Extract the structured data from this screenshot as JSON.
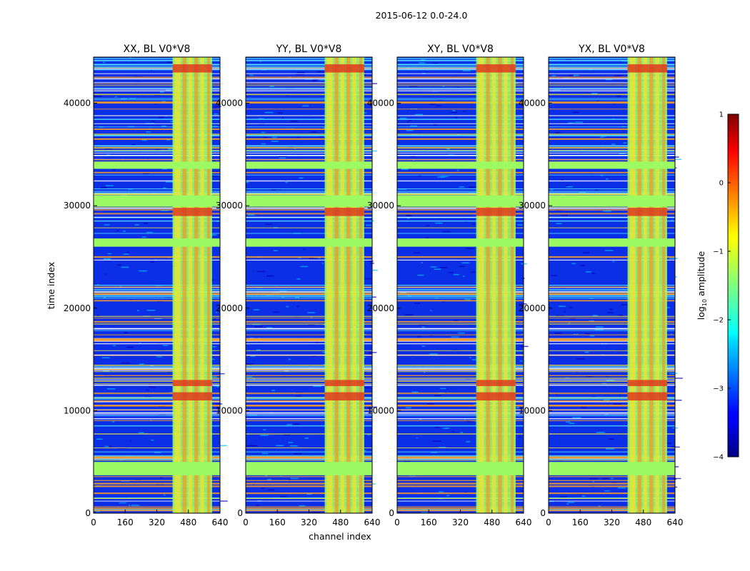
{
  "figure_title": "2015-06-12 0.0-24.0",
  "colors": {
    "low": "#00007f",
    "mid": "#7fff7f",
    "high": "#7f0000",
    "band_dark": "#0a2fe6",
    "band_green": "#9cfb62",
    "band_orange": "#f39a2a",
    "band_yellow": "#f1e233"
  },
  "chart_data": [
    {
      "type": "heatmap",
      "title": "XX, BL V0*V8",
      "xlabel": "",
      "ylabel": "time index",
      "xlim": [
        0,
        640
      ],
      "ylim": [
        0,
        44500
      ],
      "x_ticks": [
        0,
        160,
        320,
        480,
        640
      ],
      "y_ticks": [
        0,
        10000,
        20000,
        30000,
        40000
      ],
      "value_scale": "log10 amplitude",
      "dominant_features": [
        {
          "kind": "bright-channel-band",
          "channel_range": [
            400,
            600
          ]
        },
        {
          "kind": "saturated-time-rows",
          "time_ranges": [
            [
              3700,
              5000
            ],
            [
              29900,
              31000
            ],
            [
              33600,
              34300
            ]
          ]
        }
      ]
    },
    {
      "type": "heatmap",
      "title": "YY, BL V0*V8",
      "xlabel": "channel index",
      "ylabel": "",
      "xlim": [
        0,
        640
      ],
      "ylim": [
        0,
        44500
      ],
      "x_ticks": [
        0,
        160,
        320,
        480,
        640
      ],
      "y_ticks": [
        0,
        10000,
        20000,
        30000,
        40000
      ],
      "value_scale": "log10 amplitude",
      "dominant_features": [
        {
          "kind": "bright-channel-band",
          "channel_range": [
            400,
            600
          ]
        },
        {
          "kind": "saturated-time-rows",
          "time_ranges": [
            [
              3700,
              5000
            ],
            [
              29900,
              31000
            ],
            [
              33600,
              34300
            ]
          ]
        }
      ]
    },
    {
      "type": "heatmap",
      "title": "XY, BL V0*V8",
      "xlabel": "",
      "ylabel": "",
      "xlim": [
        0,
        640
      ],
      "ylim": [
        0,
        44500
      ],
      "x_ticks": [
        0,
        160,
        320,
        480,
        640
      ],
      "y_ticks": [
        0,
        10000,
        20000,
        30000,
        40000
      ],
      "value_scale": "log10 amplitude",
      "dominant_features": [
        {
          "kind": "bright-channel-band",
          "channel_range": [
            400,
            600
          ]
        },
        {
          "kind": "saturated-time-rows",
          "time_ranges": [
            [
              3700,
              5000
            ],
            [
              29900,
              31000
            ],
            [
              33600,
              34300
            ]
          ]
        }
      ]
    },
    {
      "type": "heatmap",
      "title": "YX, BL V0*V8",
      "xlabel": "",
      "ylabel": "",
      "xlim": [
        0,
        640
      ],
      "ylim": [
        0,
        44500
      ],
      "x_ticks": [
        0,
        160,
        320,
        480,
        640
      ],
      "y_ticks": [
        0,
        10000,
        20000,
        30000,
        40000
      ],
      "value_scale": "log10 amplitude",
      "dominant_features": [
        {
          "kind": "bright-channel-band",
          "channel_range": [
            400,
            600
          ]
        },
        {
          "kind": "saturated-time-rows",
          "time_ranges": [
            [
              3700,
              5000
            ],
            [
              29900,
              31000
            ],
            [
              33600,
              34300
            ]
          ]
        }
      ]
    }
  ],
  "colorbar": {
    "label": "log10 amplitude",
    "label_base": "log",
    "label_sub": "10",
    "label_rest": " amplitude",
    "range": [
      -4,
      1
    ],
    "ticks": [
      1,
      0,
      -1,
      -2,
      -3,
      -4
    ],
    "tick_labels": [
      "1",
      "0",
      "−1",
      "−2",
      "−3",
      "−4"
    ],
    "colormap": "jet"
  }
}
